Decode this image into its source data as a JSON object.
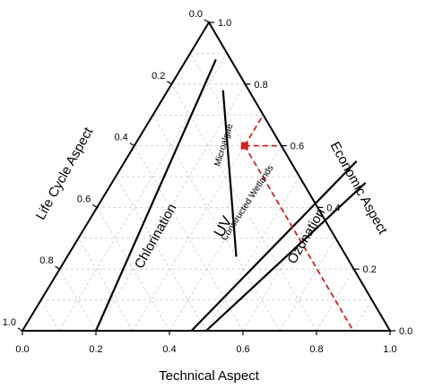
{
  "chart_data": {
    "type": "ternary",
    "axes": {
      "bottom": {
        "label": "Technical Aspect",
        "ticks": [
          "0.0",
          "0.2",
          "0.4",
          "0.6",
          "0.8",
          "1.0"
        ]
      },
      "left": {
        "label": "Life Cycle Aspect",
        "ticks": [
          "0.0",
          "0.2",
          "0.4",
          "0.6",
          "0.8",
          "1.0"
        ]
      },
      "right": {
        "label": "Economic Aspect",
        "ticks": [
          "0.0",
          "0.2",
          "0.4",
          "0.6",
          "0.8",
          "1.0"
        ]
      }
    },
    "grid": true,
    "grid_step": 0.1,
    "boundaries": [
      {
        "from": {
          "technical": 0.2,
          "economic": 0.0
        },
        "to": {
          "technical": 0.08,
          "economic": 0.88
        }
      },
      {
        "from": {
          "technical": 0.46,
          "economic": 0.0
        },
        "to": {
          "technical": 0.63,
          "economic": 0.55
        }
      },
      {
        "from": {
          "technical": 0.5,
          "economic": 0.0
        },
        "to": {
          "technical": 0.69,
          "economic": 0.48
        }
      },
      {
        "from": {
          "technical": 0.46,
          "economic": 0.24
        },
        "to": {
          "technical": 0.15,
          "economic": 0.78
        }
      }
    ],
    "selected_point": {
      "technical": 0.3,
      "economic": 0.6,
      "life_cycle": 0.1
    },
    "regions": [
      {
        "label": "Chlorination",
        "technical": 0.22,
        "economic": 0.3,
        "rotation": -61,
        "size": 15
      },
      {
        "label": "UV",
        "technical": 0.39,
        "economic": 0.33,
        "rotation": -61,
        "size": 17
      },
      {
        "label": "Microalgae",
        "technical": 0.25,
        "economic": 0.6,
        "rotation": -73,
        "size": 10
      },
      {
        "label": "Constructed Wetlands",
        "technical": 0.41,
        "economic": 0.41,
        "rotation": -57,
        "size": 10
      },
      {
        "label": "Ozonation",
        "technical": 0.63,
        "economic": 0.3,
        "rotation": -60,
        "size": 15
      }
    ],
    "colors": {
      "boundary": "#000000",
      "grid": "#c8c8c8",
      "selection": "#d62020"
    }
  }
}
